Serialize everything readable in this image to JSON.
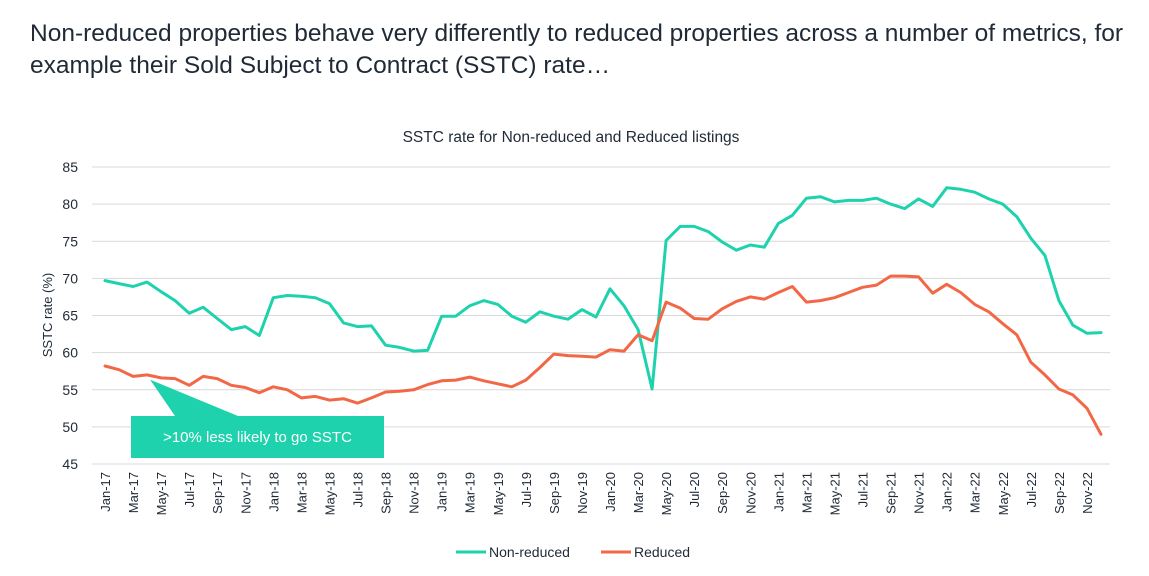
{
  "page": {
    "title": "Non-reduced properties behave very differently to reduced properties across a number of metrics, for example their Sold Subject to Contract (SSTC) rate…"
  },
  "callout": {
    "text": ">10% less likely to go SSTC",
    "color": "#1ed2ad"
  },
  "chart_data": {
    "type": "line",
    "title": "SSTC rate for Non-reduced and Reduced listings",
    "xlabel": "",
    "ylabel": "SSTC rate (%)",
    "ylim": [
      45,
      85
    ],
    "yticks": [
      45,
      50,
      55,
      60,
      65,
      70,
      75,
      80,
      85
    ],
    "grid": true,
    "legend": "bottom",
    "x": [
      "Jan-17",
      "Feb-17",
      "Mar-17",
      "Apr-17",
      "May-17",
      "Jun-17",
      "Jul-17",
      "Aug-17",
      "Sep-17",
      "Oct-17",
      "Nov-17",
      "Dec-17",
      "Jan-18",
      "Feb-18",
      "Mar-18",
      "Apr-18",
      "May-18",
      "Jun-18",
      "Jul-18",
      "Aug-18",
      "Sep-18",
      "Oct-18",
      "Nov-18",
      "Dec-18",
      "Jan-19",
      "Feb-19",
      "Mar-19",
      "Apr-19",
      "May-19",
      "Jun-19",
      "Jul-19",
      "Aug-19",
      "Sep-19",
      "Oct-19",
      "Nov-19",
      "Dec-19",
      "Jan-20",
      "Feb-20",
      "Mar-20",
      "Apr-20",
      "May-20",
      "Jun-20",
      "Jul-20",
      "Aug-20",
      "Sep-20",
      "Oct-20",
      "Nov-20",
      "Dec-20",
      "Jan-21",
      "Feb-21",
      "Mar-21",
      "Apr-21",
      "May-21",
      "Jun-21",
      "Jul-21",
      "Aug-21",
      "Sep-21",
      "Oct-21",
      "Nov-21",
      "Dec-21",
      "Jan-22",
      "Feb-22",
      "Mar-22",
      "Apr-22",
      "May-22",
      "Jun-22",
      "Jul-22",
      "Aug-22",
      "Sep-22",
      "Oct-22",
      "Nov-22",
      "Dec-22"
    ],
    "xticks": [
      "Jan-17",
      "Mar-17",
      "May-17",
      "Jul-17",
      "Sep-17",
      "Nov-17",
      "Jan-18",
      "Mar-18",
      "May-18",
      "Jul-18",
      "Sep-18",
      "Nov-18",
      "Jan-19",
      "Mar-19",
      "May-19",
      "Jul-19",
      "Sep-19",
      "Nov-19",
      "Jan-20",
      "Mar-20",
      "May-20",
      "Jul-20",
      "Sep-20",
      "Nov-20",
      "Jan-21",
      "Mar-21",
      "May-21",
      "Jul-21",
      "Sep-21",
      "Nov-21",
      "Jan-22",
      "Mar-22",
      "May-22",
      "Jul-22",
      "Sep-22",
      "Nov-22"
    ],
    "series": [
      {
        "name": "Non-reduced",
        "color": "#1ed2ad",
        "values": [
          69.7,
          69.3,
          68.9,
          69.5,
          68.2,
          67.0,
          65.3,
          66.1,
          64.6,
          63.1,
          63.5,
          62.3,
          67.4,
          67.7,
          67.6,
          67.4,
          66.6,
          64.0,
          63.5,
          63.6,
          61.0,
          60.7,
          60.2,
          60.3,
          64.9,
          64.9,
          66.3,
          67.0,
          66.5,
          64.9,
          64.1,
          65.5,
          64.9,
          64.5,
          65.8,
          64.8,
          68.6,
          66.3,
          63.1,
          55.1,
          75.1,
          77.0,
          77.0,
          76.3,
          74.9,
          73.8,
          74.5,
          74.2,
          77.4,
          78.5,
          80.8,
          81.0,
          80.3,
          80.5,
          80.5,
          80.8,
          80.0,
          79.4,
          80.7,
          79.7,
          82.2,
          82.0,
          81.6,
          80.7,
          80.0,
          78.3,
          75.4,
          73.1,
          67.0,
          63.7,
          62.6,
          62.7
        ]
      },
      {
        "name": "Reduced",
        "color": "#f26847",
        "values": [
          58.2,
          57.7,
          56.8,
          57.0,
          56.6,
          56.5,
          55.6,
          56.8,
          56.5,
          55.6,
          55.3,
          54.6,
          55.4,
          55.0,
          53.9,
          54.1,
          53.6,
          53.8,
          53.2,
          53.9,
          54.7,
          54.8,
          55.0,
          55.7,
          56.2,
          56.3,
          56.7,
          56.2,
          55.8,
          55.4,
          56.3,
          58.0,
          59.8,
          59.6,
          59.5,
          59.4,
          60.4,
          60.2,
          62.4,
          61.6,
          66.8,
          66.0,
          64.6,
          64.5,
          65.9,
          66.9,
          67.5,
          67.2,
          68.1,
          68.9,
          66.8,
          67.0,
          67.4,
          68.1,
          68.8,
          69.1,
          70.3,
          70.3,
          70.2,
          68.0,
          69.2,
          68.1,
          66.5,
          65.5,
          63.9,
          62.4,
          58.7,
          57.0,
          55.1,
          54.3,
          52.5,
          49.0
        ]
      }
    ]
  }
}
